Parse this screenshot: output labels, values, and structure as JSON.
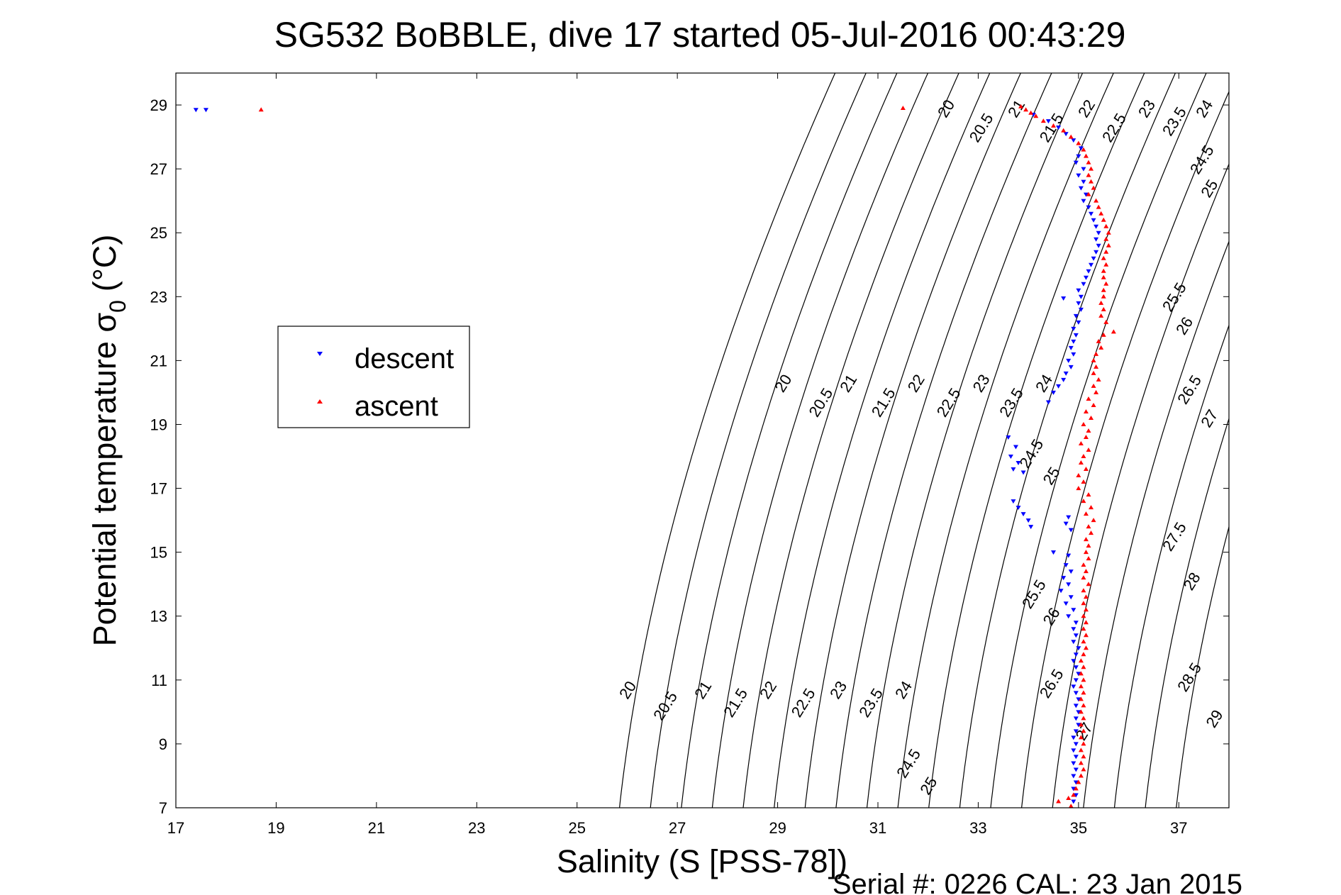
{
  "chart_data": {
    "type": "scatter",
    "title": "SG532 BoBBLE, dive 17 started 05-Jul-2016 00:43:29",
    "xlabel": "Salinity (S [PSS-78])",
    "ylabel": "Potential temperature σ",
    "ylabel_subscript": "0",
    "ylabel_units": "(°C)",
    "footer": "Serial #: 0226  CAL: 23 Jan 2015",
    "xlim": [
      17,
      38
    ],
    "ylim": [
      7,
      30
    ],
    "xticks": [
      17,
      19,
      21,
      23,
      25,
      27,
      29,
      31,
      33,
      35,
      37
    ],
    "yticks": [
      7,
      9,
      11,
      13,
      15,
      17,
      19,
      21,
      23,
      25,
      27,
      29
    ],
    "grid": false,
    "legend_position": "left",
    "contour_color": "#000000",
    "density_contours": {
      "levels": [
        20,
        20.5,
        21,
        21.5,
        22,
        22.5,
        23,
        23.5,
        24,
        24.5,
        25,
        25.5,
        26,
        26.5,
        27,
        27.5,
        28,
        28.5,
        29
      ],
      "label_positions": [
        {
          "label": "20",
          "s": 26.1,
          "t": 10.6
        },
        {
          "label": "20.5",
          "s": 26.85,
          "t": 10.1
        },
        {
          "label": "21",
          "s": 27.6,
          "t": 10.6
        },
        {
          "label": "21.5",
          "s": 28.25,
          "t": 10.2
        },
        {
          "label": "22",
          "s": 28.9,
          "t": 10.6
        },
        {
          "label": "22.5",
          "s": 29.6,
          "t": 10.2
        },
        {
          "label": "23",
          "s": 30.3,
          "t": 10.6
        },
        {
          "label": "23.5",
          "s": 30.95,
          "t": 10.2
        },
        {
          "label": "24",
          "s": 31.6,
          "t": 10.6
        },
        {
          "label": "24.5",
          "s": 31.7,
          "t": 8.3
        },
        {
          "label": "25",
          "s": 32.1,
          "t": 7.6
        },
        {
          "label": "20",
          "s": 29.2,
          "t": 20.2
        },
        {
          "label": "20.5",
          "s": 29.95,
          "t": 19.6
        },
        {
          "label": "21",
          "s": 30.5,
          "t": 20.2
        },
        {
          "label": "21.5",
          "s": 31.2,
          "t": 19.6
        },
        {
          "label": "22",
          "s": 31.85,
          "t": 20.2
        },
        {
          "label": "22.5",
          "s": 32.5,
          "t": 19.6
        },
        {
          "label": "23",
          "s": 33.15,
          "t": 20.2
        },
        {
          "label": "23.5",
          "s": 33.75,
          "t": 19.6
        },
        {
          "label": "24",
          "s": 34.4,
          "t": 20.2
        },
        {
          "label": "24.5",
          "s": 34.15,
          "t": 18.0
        },
        {
          "label": "25",
          "s": 34.55,
          "t": 17.3
        },
        {
          "label": "25.5",
          "s": 34.2,
          "t": 13.6
        },
        {
          "label": "26",
          "s": 34.55,
          "t": 12.9
        },
        {
          "label": "26.5",
          "s": 34.55,
          "t": 10.8
        },
        {
          "label": "27",
          "s": 35.2,
          "t": 9.3
        },
        {
          "label": "20",
          "s": 32.45,
          "t": 28.8
        },
        {
          "label": "20.5",
          "s": 33.15,
          "t": 28.2
        },
        {
          "label": "21",
          "s": 33.85,
          "t": 28.8
        },
        {
          "label": "21.5",
          "s": 34.55,
          "t": 28.2
        },
        {
          "label": "22",
          "s": 35.25,
          "t": 28.8
        },
        {
          "label": "22.5",
          "s": 35.8,
          "t": 28.2
        },
        {
          "label": "23",
          "s": 36.45,
          "t": 28.8
        },
        {
          "label": "23.5",
          "s": 37.0,
          "t": 28.4
        },
        {
          "label": "24",
          "s": 37.6,
          "t": 28.8
        },
        {
          "label": "24.5",
          "s": 37.55,
          "t": 27.2
        },
        {
          "label": "25",
          "s": 37.7,
          "t": 26.3
        },
        {
          "label": "25.5",
          "s": 37.0,
          "t": 22.9
        },
        {
          "label": "26",
          "s": 37.2,
          "t": 22.0
        },
        {
          "label": "26.5",
          "s": 37.3,
          "t": 20.0
        },
        {
          "label": "27",
          "s": 37.7,
          "t": 19.1
        },
        {
          "label": "27.5",
          "s": 37.0,
          "t": 15.4
        },
        {
          "label": "28",
          "s": 37.35,
          "t": 14.0
        },
        {
          "label": "28.5",
          "s": 37.3,
          "t": 11.0
        },
        {
          "label": "29",
          "s": 37.8,
          "t": 9.7
        }
      ]
    },
    "series": [
      {
        "name": "descent",
        "color": "#0000ff",
        "marker": "triangle-down",
        "points": [
          [
            17.4,
            28.85
          ],
          [
            17.6,
            28.85
          ],
          [
            34.1,
            28.7
          ],
          [
            34.4,
            28.5
          ],
          [
            34.6,
            28.3
          ],
          [
            34.75,
            28.1
          ],
          [
            34.9,
            27.9
          ],
          [
            35.05,
            27.65
          ],
          [
            35.0,
            27.4
          ],
          [
            34.95,
            27.2
          ],
          [
            35.1,
            27.0
          ],
          [
            35.0,
            26.8
          ],
          [
            35.1,
            26.6
          ],
          [
            35.05,
            26.4
          ],
          [
            35.15,
            26.2
          ],
          [
            35.1,
            26.0
          ],
          [
            35.2,
            25.8
          ],
          [
            35.25,
            25.6
          ],
          [
            35.3,
            25.4
          ],
          [
            35.35,
            25.2
          ],
          [
            35.4,
            25.0
          ],
          [
            35.35,
            24.8
          ],
          [
            35.4,
            24.6
          ],
          [
            35.35,
            24.4
          ],
          [
            35.3,
            24.2
          ],
          [
            35.25,
            24.0
          ],
          [
            35.2,
            23.8
          ],
          [
            35.15,
            23.6
          ],
          [
            35.1,
            23.4
          ],
          [
            35.0,
            23.2
          ],
          [
            35.05,
            23.0
          ],
          [
            35.0,
            22.8
          ],
          [
            34.7,
            22.95
          ],
          [
            35.05,
            22.6
          ],
          [
            34.95,
            22.4
          ],
          [
            35.0,
            22.2
          ],
          [
            34.9,
            22.0
          ],
          [
            34.95,
            21.8
          ],
          [
            34.9,
            21.6
          ],
          [
            34.85,
            21.4
          ],
          [
            34.9,
            21.2
          ],
          [
            34.8,
            21.0
          ],
          [
            34.85,
            20.8
          ],
          [
            34.75,
            20.6
          ],
          [
            34.7,
            20.4
          ],
          [
            34.6,
            20.2
          ],
          [
            34.5,
            20.0
          ],
          [
            34.4,
            19.7
          ],
          [
            33.6,
            18.6
          ],
          [
            33.75,
            18.3
          ],
          [
            33.65,
            18.0
          ],
          [
            33.8,
            17.8
          ],
          [
            33.7,
            17.6
          ],
          [
            33.9,
            17.5
          ],
          [
            33.7,
            16.6
          ],
          [
            33.8,
            16.4
          ],
          [
            33.9,
            16.2
          ],
          [
            34.0,
            16.0
          ],
          [
            34.05,
            15.8
          ],
          [
            34.8,
            16.1
          ],
          [
            34.75,
            15.9
          ],
          [
            34.85,
            15.7
          ],
          [
            34.5,
            15.0
          ],
          [
            34.8,
            14.9
          ],
          [
            34.75,
            14.6
          ],
          [
            34.85,
            14.4
          ],
          [
            34.7,
            14.2
          ],
          [
            34.8,
            14.0
          ],
          [
            34.65,
            13.8
          ],
          [
            34.85,
            13.6
          ],
          [
            34.75,
            13.4
          ],
          [
            34.9,
            13.2
          ],
          [
            34.8,
            13.0
          ],
          [
            34.95,
            12.8
          ],
          [
            34.9,
            12.6
          ],
          [
            34.95,
            12.4
          ],
          [
            34.9,
            12.2
          ],
          [
            35.0,
            12.0
          ],
          [
            34.95,
            11.8
          ],
          [
            34.9,
            11.6
          ],
          [
            34.95,
            11.4
          ],
          [
            35.0,
            11.2
          ],
          [
            34.95,
            11.0
          ],
          [
            34.9,
            10.8
          ],
          [
            34.95,
            10.6
          ],
          [
            35.0,
            10.4
          ],
          [
            34.95,
            10.2
          ],
          [
            35.0,
            10.0
          ],
          [
            34.95,
            9.8
          ],
          [
            35.0,
            9.6
          ],
          [
            34.95,
            9.4
          ],
          [
            34.9,
            9.2
          ],
          [
            34.95,
            9.0
          ],
          [
            34.9,
            8.8
          ],
          [
            34.95,
            8.6
          ],
          [
            34.9,
            8.4
          ],
          [
            34.95,
            8.2
          ],
          [
            34.9,
            8.0
          ],
          [
            34.95,
            7.8
          ],
          [
            34.9,
            7.6
          ],
          [
            34.95,
            7.4
          ],
          [
            34.9,
            7.2
          ]
        ]
      },
      {
        "name": "ascent",
        "color": "#ff0000",
        "marker": "triangle-up",
        "points": [
          [
            18.7,
            28.85
          ],
          [
            31.5,
            28.9
          ],
          [
            33.85,
            28.95
          ],
          [
            33.95,
            28.85
          ],
          [
            34.05,
            28.75
          ],
          [
            34.15,
            28.65
          ],
          [
            34.3,
            28.5
          ],
          [
            34.5,
            28.35
          ],
          [
            34.7,
            28.2
          ],
          [
            34.85,
            28.0
          ],
          [
            35.0,
            27.8
          ],
          [
            35.1,
            27.6
          ],
          [
            35.15,
            27.4
          ],
          [
            35.2,
            27.2
          ],
          [
            35.25,
            27.0
          ],
          [
            35.2,
            26.8
          ],
          [
            35.25,
            26.6
          ],
          [
            35.3,
            26.4
          ],
          [
            35.2,
            26.2
          ],
          [
            35.35,
            26.0
          ],
          [
            35.4,
            25.8
          ],
          [
            35.45,
            25.6
          ],
          [
            35.5,
            25.4
          ],
          [
            35.55,
            25.2
          ],
          [
            35.6,
            25.0
          ],
          [
            35.55,
            24.8
          ],
          [
            35.6,
            24.6
          ],
          [
            35.55,
            24.4
          ],
          [
            35.5,
            24.2
          ],
          [
            35.55,
            24.0
          ],
          [
            35.5,
            23.8
          ],
          [
            35.5,
            23.6
          ],
          [
            35.55,
            23.4
          ],
          [
            35.5,
            23.2
          ],
          [
            35.5,
            23.0
          ],
          [
            35.45,
            22.8
          ],
          [
            35.5,
            22.6
          ],
          [
            35.45,
            22.4
          ],
          [
            35.55,
            22.2
          ],
          [
            35.7,
            21.9
          ],
          [
            35.5,
            21.8
          ],
          [
            35.4,
            21.6
          ],
          [
            35.45,
            21.4
          ],
          [
            35.35,
            21.2
          ],
          [
            35.3,
            21.0
          ],
          [
            35.35,
            20.8
          ],
          [
            35.3,
            20.6
          ],
          [
            35.4,
            20.4
          ],
          [
            35.3,
            20.2
          ],
          [
            35.35,
            20.0
          ],
          [
            35.2,
            19.8
          ],
          [
            35.3,
            19.6
          ],
          [
            35.15,
            19.4
          ],
          [
            35.25,
            19.2
          ],
          [
            35.1,
            19.0
          ],
          [
            35.2,
            18.8
          ],
          [
            35.15,
            18.6
          ],
          [
            35.05,
            18.4
          ],
          [
            35.2,
            18.2
          ],
          [
            35.1,
            18.0
          ],
          [
            35.05,
            17.8
          ],
          [
            35.15,
            17.6
          ],
          [
            35.0,
            17.4
          ],
          [
            35.1,
            17.2
          ],
          [
            35.0,
            17.0
          ],
          [
            35.2,
            16.8
          ],
          [
            35.1,
            16.6
          ],
          [
            35.25,
            16.4
          ],
          [
            35.15,
            16.2
          ],
          [
            35.3,
            16.0
          ],
          [
            35.2,
            15.8
          ],
          [
            35.25,
            15.6
          ],
          [
            35.15,
            15.4
          ],
          [
            35.2,
            15.2
          ],
          [
            35.15,
            15.0
          ],
          [
            35.2,
            14.8
          ],
          [
            35.1,
            14.6
          ],
          [
            35.15,
            14.4
          ],
          [
            35.1,
            14.2
          ],
          [
            35.2,
            14.0
          ],
          [
            35.1,
            13.8
          ],
          [
            35.15,
            13.6
          ],
          [
            35.1,
            13.4
          ],
          [
            35.15,
            13.2
          ],
          [
            35.1,
            13.0
          ],
          [
            35.15,
            12.8
          ],
          [
            35.1,
            12.6
          ],
          [
            35.15,
            12.4
          ],
          [
            35.1,
            12.2
          ],
          [
            35.15,
            12.0
          ],
          [
            35.1,
            11.8
          ],
          [
            35.05,
            11.6
          ],
          [
            35.1,
            11.4
          ],
          [
            35.05,
            11.2
          ],
          [
            35.1,
            11.0
          ],
          [
            35.05,
            10.8
          ],
          [
            35.1,
            10.6
          ],
          [
            35.05,
            10.4
          ],
          [
            35.1,
            10.2
          ],
          [
            35.05,
            10.0
          ],
          [
            35.1,
            9.8
          ],
          [
            35.05,
            9.6
          ],
          [
            35.1,
            9.4
          ],
          [
            35.05,
            9.2
          ],
          [
            35.1,
            9.0
          ],
          [
            35.05,
            8.8
          ],
          [
            35.1,
            8.6
          ],
          [
            35.05,
            8.4
          ],
          [
            35.1,
            8.2
          ],
          [
            35.05,
            8.0
          ],
          [
            35.0,
            7.8
          ],
          [
            34.95,
            7.6
          ],
          [
            34.9,
            7.4
          ],
          [
            34.8,
            7.3
          ],
          [
            34.6,
            7.2
          ],
          [
            34.85,
            7.05
          ]
        ]
      }
    ]
  }
}
